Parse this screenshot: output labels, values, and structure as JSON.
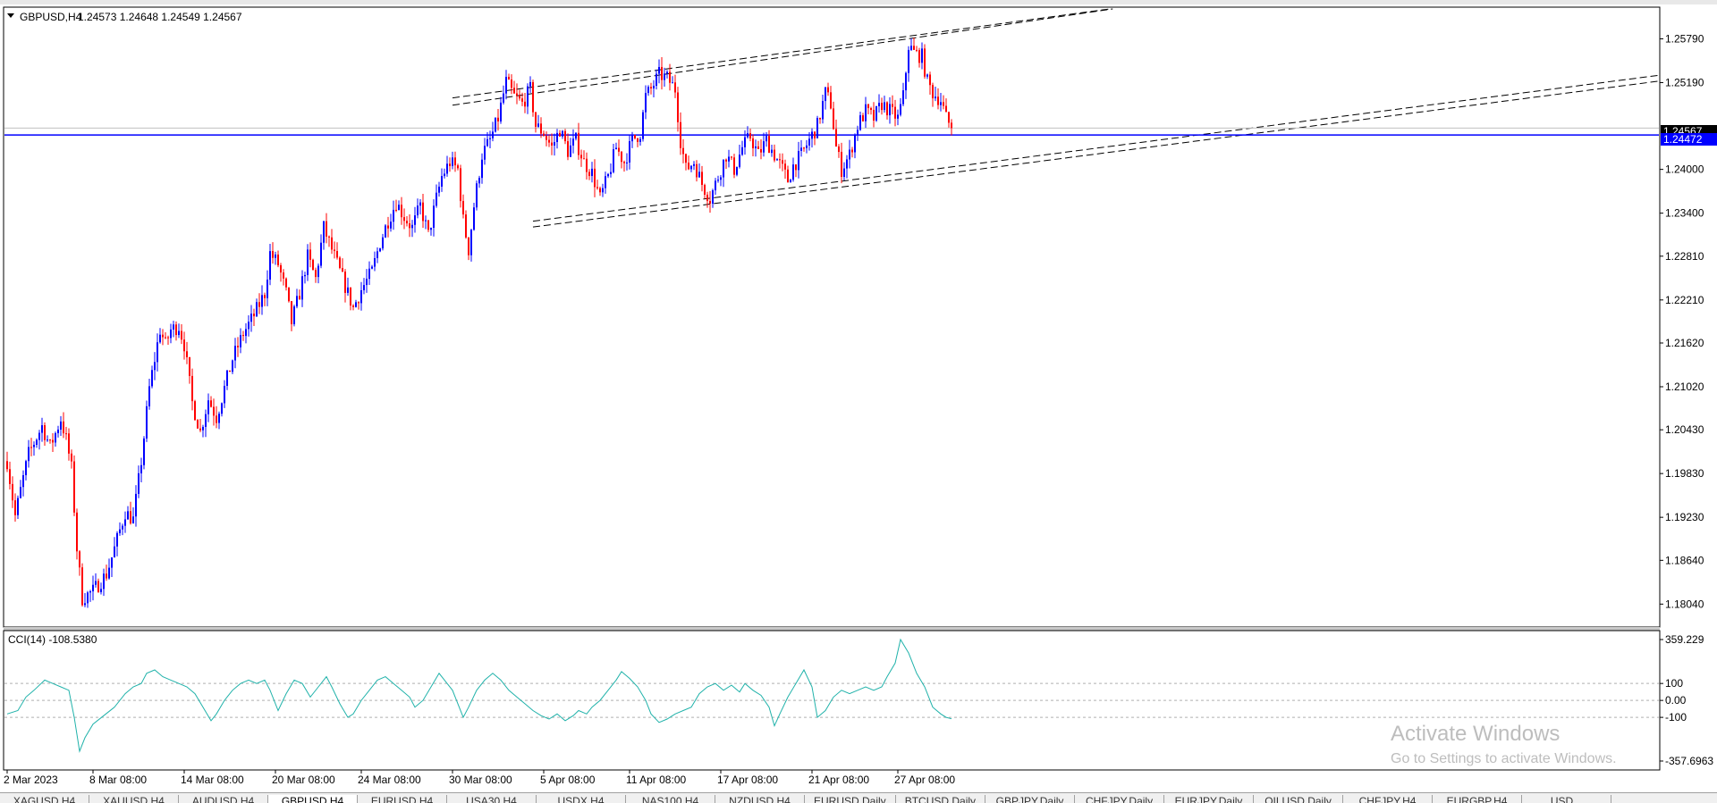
{
  "chart_header": {
    "collapse_icon": "triangle-down-icon",
    "symbol": "GBPUSD,H4",
    "ohlc": "1.24573 1.24648 1.24549 1.24567"
  },
  "indicator_header": "CCI(14) -108.5380",
  "price_labels": {
    "current_price": "1.24567",
    "line_price": "1.24472"
  },
  "chart_data": {
    "type": "candlestick",
    "symbol": "GBPUSD",
    "timeframe": "H4",
    "colors": {
      "up": "#0000ff",
      "down": "#ff0000",
      "cci_line": "#20b2aa",
      "hline": "#0000ff",
      "trendline": "#000000"
    },
    "price_axis": {
      "ylim": [
        1.1775,
        1.262
      ],
      "ticks": [
        "1.25790",
        "1.25190",
        "1.24000",
        "1.23400",
        "1.22810",
        "1.22210",
        "1.21620",
        "1.21020",
        "1.20430",
        "1.19830",
        "1.19230",
        "1.18640",
        "1.18040"
      ]
    },
    "x_axis": {
      "ticks": [
        {
          "label": "2 Mar 2023",
          "bar": 0
        },
        {
          "label": "8 Mar 08:00",
          "bar": 32
        },
        {
          "label": "14 Mar 08:00",
          "bar": 66
        },
        {
          "label": "20 Mar 08:00",
          "bar": 100
        },
        {
          "label": "24 Mar 08:00",
          "bar": 132
        },
        {
          "label": "30 Mar 08:00",
          "bar": 166
        },
        {
          "label": "5 Apr 08:00",
          "bar": 200
        },
        {
          "label": "11 Apr 08:00",
          "bar": 232
        },
        {
          "label": "17 Apr 08:00",
          "bar": 266
        },
        {
          "label": "21 Apr 08:00",
          "bar": 300
        },
        {
          "label": "27 Apr 08:00",
          "bar": 332
        }
      ]
    },
    "horizontal_line": 1.24472,
    "current_price": 1.24567,
    "channel_lines": [
      {
        "x1": 166,
        "y1": 1.2498,
        "x2": 427,
        "y2": 1.2628
      },
      {
        "x1": 166,
        "y1": 1.2488,
        "x2": 427,
        "y2": 1.2628
      },
      {
        "x1": 196,
        "y1": 1.2329,
        "x2": 624,
        "y2": 1.2533
      },
      {
        "x1": 196,
        "y1": 1.2321,
        "x2": 624,
        "y2": 1.2525
      }
    ],
    "path": [
      [
        0,
        1.2
      ],
      [
        3,
        1.1925
      ],
      [
        5,
        1.196
      ],
      [
        8,
        1.201
      ],
      [
        13,
        1.2048
      ],
      [
        16,
        1.202
      ],
      [
        18,
        1.2038
      ],
      [
        20,
        1.2058
      ],
      [
        22,
        1.203
      ],
      [
        24,
        1.199
      ],
      [
        26,
        1.188
      ],
      [
        28,
        1.1812
      ],
      [
        32,
        1.1822
      ],
      [
        37,
        1.1845
      ],
      [
        40,
        1.188
      ],
      [
        44,
        1.193
      ],
      [
        47,
        1.192
      ],
      [
        50,
        1.2
      ],
      [
        53,
        1.21
      ],
      [
        55,
        1.214
      ],
      [
        57,
        1.218
      ],
      [
        59,
        1.216
      ],
      [
        61,
        1.218
      ],
      [
        64,
        1.2185
      ],
      [
        66,
        1.216
      ],
      [
        69,
        1.208
      ],
      [
        72,
        1.204
      ],
      [
        75,
        1.2085
      ],
      [
        78,
        1.206
      ],
      [
        81,
        1.21
      ],
      [
        84,
        1.214
      ],
      [
        88,
        1.2175
      ],
      [
        92,
        1.22
      ],
      [
        96,
        1.223
      ],
      [
        98,
        1.2285
      ],
      [
        101,
        1.227
      ],
      [
        104,
        1.223
      ],
      [
        106,
        1.219
      ],
      [
        109,
        1.223
      ],
      [
        112,
        1.228
      ],
      [
        115,
        1.225
      ],
      [
        118,
        1.232
      ],
      [
        121,
        1.229
      ],
      [
        124,
        1.226
      ],
      [
        126,
        1.224
      ],
      [
        129,
        1.221
      ],
      [
        132,
        1.2235
      ],
      [
        136,
        1.226
      ],
      [
        139,
        1.23
      ],
      [
        142,
        1.233
      ],
      [
        145,
        1.2355
      ],
      [
        148,
        1.2335
      ],
      [
        151,
        1.232
      ],
      [
        154,
        1.235
      ],
      [
        157,
        1.231
      ],
      [
        160,
        1.236
      ],
      [
        162,
        1.239
      ],
      [
        165,
        1.241
      ],
      [
        168,
        1.24
      ],
      [
        170,
        1.233
      ],
      [
        172,
        1.229
      ],
      [
        174,
        1.235
      ],
      [
        177,
        1.242
      ],
      [
        180,
        1.244
      ],
      [
        183,
        1.247
      ],
      [
        186,
        1.252
      ],
      [
        189,
        1.25
      ],
      [
        192,
        1.249
      ],
      [
        195,
        1.251
      ],
      [
        197,
        1.246
      ],
      [
        200,
        1.245
      ],
      [
        203,
        1.243
      ],
      [
        206,
        1.2455
      ],
      [
        209,
        1.2425
      ],
      [
        212,
        1.244
      ],
      [
        215,
        1.241
      ],
      [
        218,
        1.2395
      ],
      [
        221,
        1.236
      ],
      [
        224,
        1.239
      ],
      [
        227,
        1.243
      ],
      [
        230,
        1.241
      ],
      [
        233,
        1.244
      ],
      [
        236,
        1.245
      ],
      [
        238,
        1.25
      ],
      [
        240,
        1.251
      ],
      [
        243,
        1.253
      ],
      [
        246,
        1.2525
      ],
      [
        249,
        1.251
      ],
      [
        251,
        1.244
      ],
      [
        253,
        1.24
      ],
      [
        256,
        1.241
      ],
      [
        259,
        1.238
      ],
      [
        262,
        1.236
      ],
      [
        265,
        1.239
      ],
      [
        268,
        1.242
      ],
      [
        271,
        1.24
      ],
      [
        274,
        1.243
      ],
      [
        277,
        1.2445
      ],
      [
        280,
        1.242
      ],
      [
        283,
        1.244
      ],
      [
        286,
        1.242
      ],
      [
        289,
        1.24
      ],
      [
        291,
        1.2385
      ],
      [
        293,
        1.2405
      ],
      [
        296,
        1.242
      ],
      [
        299,
        1.244
      ],
      [
        302,
        1.246
      ],
      [
        305,
        1.2505
      ],
      [
        307,
        1.249
      ],
      [
        309,
        1.243
      ],
      [
        311,
        1.24
      ],
      [
        314,
        1.242
      ],
      [
        317,
        1.246
      ],
      [
        320,
        1.248
      ],
      [
        323,
        1.247
      ],
      [
        326,
        1.249
      ],
      [
        329,
        1.248
      ],
      [
        332,
        1.247
      ],
      [
        334,
        1.25
      ],
      [
        336,
        1.257
      ],
      [
        338,
        1.256
      ],
      [
        341,
        1.2555
      ],
      [
        343,
        1.252
      ],
      [
        345,
        1.2505
      ],
      [
        348,
        1.2495
      ],
      [
        350,
        1.247
      ],
      [
        352,
        1.2457
      ]
    ],
    "cci": {
      "ylim": [
        -357.6963,
        359.229
      ],
      "ticks": [
        "359.229",
        "100",
        "0.00",
        "-100",
        "-357.6963"
      ],
      "levels": [
        100,
        0,
        -100
      ],
      "points": [
        [
          0,
          -80
        ],
        [
          4,
          -60
        ],
        [
          7,
          20
        ],
        [
          10,
          60
        ],
        [
          14,
          120
        ],
        [
          17,
          100
        ],
        [
          20,
          80
        ],
        [
          23,
          60
        ],
        [
          25,
          -100
        ],
        [
          27,
          -300
        ],
        [
          29,
          -220
        ],
        [
          32,
          -140
        ],
        [
          36,
          -90
        ],
        [
          40,
          -40
        ],
        [
          44,
          40
        ],
        [
          47,
          80
        ],
        [
          50,
          100
        ],
        [
          52,
          160
        ],
        [
          55,
          180
        ],
        [
          58,
          140
        ],
        [
          61,
          120
        ],
        [
          64,
          100
        ],
        [
          67,
          80
        ],
        [
          70,
          40
        ],
        [
          73,
          -40
        ],
        [
          76,
          -120
        ],
        [
          78,
          -80
        ],
        [
          81,
          0
        ],
        [
          84,
          60
        ],
        [
          87,
          100
        ],
        [
          90,
          120
        ],
        [
          93,
          100
        ],
        [
          96,
          120
        ],
        [
          98,
          60
        ],
        [
          101,
          -60
        ],
        [
          104,
          40
        ],
        [
          107,
          120
        ],
        [
          110,
          100
        ],
        [
          113,
          20
        ],
        [
          116,
          80
        ],
        [
          119,
          140
        ],
        [
          121,
          80
        ],
        [
          124,
          -20
        ],
        [
          127,
          -100
        ],
        [
          129,
          -80
        ],
        [
          132,
          0
        ],
        [
          135,
          60
        ],
        [
          138,
          120
        ],
        [
          141,
          140
        ],
        [
          144,
          100
        ],
        [
          147,
          60
        ],
        [
          150,
          20
        ],
        [
          152,
          -40
        ],
        [
          155,
          0
        ],
        [
          158,
          80
        ],
        [
          161,
          160
        ],
        [
          164,
          100
        ],
        [
          166,
          60
        ],
        [
          168,
          -20
        ],
        [
          170,
          -100
        ],
        [
          172,
          -40
        ],
        [
          175,
          60
        ],
        [
          178,
          120
        ],
        [
          181,
          160
        ],
        [
          184,
          120
        ],
        [
          187,
          60
        ],
        [
          190,
          20
        ],
        [
          193,
          -20
        ],
        [
          196,
          -60
        ],
        [
          199,
          -90
        ],
        [
          202,
          -110
        ],
        [
          205,
          -80
        ],
        [
          208,
          -120
        ],
        [
          211,
          -90
        ],
        [
          213,
          -60
        ],
        [
          216,
          -80
        ],
        [
          218,
          -40
        ],
        [
          221,
          0
        ],
        [
          224,
          60
        ],
        [
          227,
          120
        ],
        [
          229,
          170
        ],
        [
          232,
          130
        ],
        [
          235,
          80
        ],
        [
          238,
          0
        ],
        [
          240,
          -80
        ],
        [
          243,
          -130
        ],
        [
          246,
          -110
        ],
        [
          249,
          -80
        ],
        [
          252,
          -60
        ],
        [
          255,
          -40
        ],
        [
          258,
          40
        ],
        [
          261,
          80
        ],
        [
          264,
          100
        ],
        [
          267,
          60
        ],
        [
          270,
          90
        ],
        [
          273,
          50
        ],
        [
          275,
          100
        ],
        [
          278,
          60
        ],
        [
          281,
          30
        ],
        [
          284,
          -40
        ],
        [
          286,
          -150
        ],
        [
          288,
          -80
        ],
        [
          291,
          20
        ],
        [
          294,
          100
        ],
        [
          297,
          180
        ],
        [
          300,
          80
        ],
        [
          302,
          -100
        ],
        [
          305,
          -60
        ],
        [
          308,
          20
        ],
        [
          311,
          60
        ],
        [
          314,
          40
        ],
        [
          317,
          60
        ],
        [
          320,
          80
        ],
        [
          323,
          60
        ],
        [
          326,
          80
        ],
        [
          328,
          140
        ],
        [
          331,
          220
        ],
        [
          333,
          359
        ],
        [
          336,
          280
        ],
        [
          339,
          160
        ],
        [
          342,
          80
        ],
        [
          345,
          -40
        ],
        [
          348,
          -80
        ],
        [
          350,
          -100
        ],
        [
          352,
          -108.538
        ]
      ]
    }
  },
  "watermark": {
    "title": "Activate Windows",
    "subtitle": "Go to Settings to activate Windows."
  },
  "tabs": [
    {
      "label": "XAGUSD,H4",
      "active": false
    },
    {
      "label": "XAUUSD,H4",
      "active": false
    },
    {
      "label": "AUDUSD,H4",
      "active": false
    },
    {
      "label": "GBPUSD,H4",
      "active": true
    },
    {
      "label": "EURUSD,H4",
      "active": false
    },
    {
      "label": "USA30,H4",
      "active": false
    },
    {
      "label": "USDX,H4",
      "active": false
    },
    {
      "label": "NAS100,H4",
      "active": false
    },
    {
      "label": "NZDUSD,H4",
      "active": false
    },
    {
      "label": "EURUSD,Daily",
      "active": false
    },
    {
      "label": "BTCUSD,Daily",
      "active": false
    },
    {
      "label": "GBPJPY,Daily",
      "active": false
    },
    {
      "label": "CHFJPY,Daily",
      "active": false
    },
    {
      "label": "EURJPY,Daily",
      "active": false
    },
    {
      "label": "OILUSD,Daily",
      "active": false
    },
    {
      "label": "CHFJPY,H4",
      "active": false
    },
    {
      "label": "EURGBP,H4",
      "active": false
    },
    {
      "label": "USD...",
      "active": false
    }
  ]
}
